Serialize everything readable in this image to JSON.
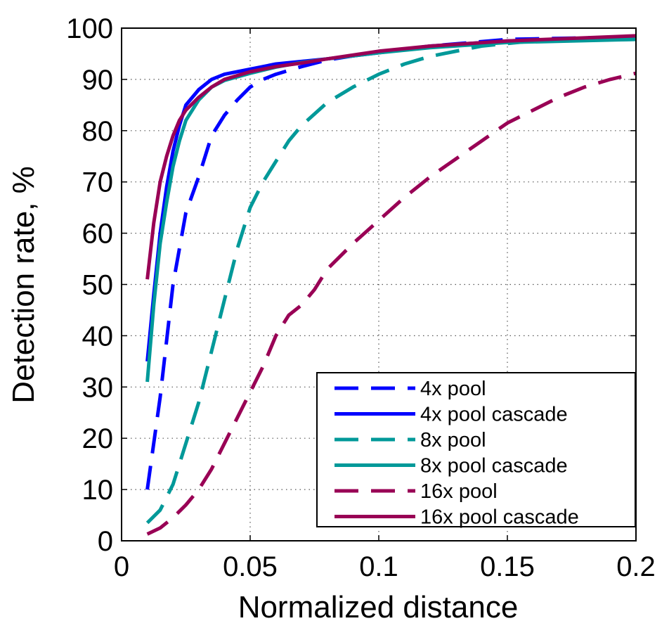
{
  "chart_data": {
    "type": "line",
    "title": "",
    "xlabel": "Normalized distance",
    "ylabel": "Detection rate, %",
    "xlim": [
      0,
      0.2
    ],
    "ylim": [
      0,
      100
    ],
    "xticks": [
      0,
      0.05,
      0.1,
      0.15,
      0.2
    ],
    "xtick_labels": [
      "0",
      "0.05",
      "0.1",
      "0.15",
      "0.2"
    ],
    "yticks": [
      0,
      10,
      20,
      30,
      40,
      50,
      60,
      70,
      80,
      90,
      100
    ],
    "ytick_labels": [
      "0",
      "10",
      "20",
      "30",
      "40",
      "50",
      "60",
      "70",
      "80",
      "90",
      "100"
    ],
    "grid": true,
    "legend_position": "bottom-right",
    "series": [
      {
        "name": "4x pool",
        "color": "#0000ff",
        "style": "dashed",
        "x": [
          0.01,
          0.015,
          0.02,
          0.025,
          0.03,
          0.035,
          0.04,
          0.045,
          0.05,
          0.055,
          0.06,
          0.07,
          0.08,
          0.09,
          0.1,
          0.12,
          0.15,
          0.2
        ],
        "y": [
          10,
          28,
          50,
          64,
          71,
          79,
          83,
          86,
          88.5,
          90,
          91,
          92.5,
          93.8,
          94.6,
          95.3,
          96.5,
          97.8,
          98.3
        ]
      },
      {
        "name": "4x pool cascade",
        "color": "#0000ff",
        "style": "solid",
        "x": [
          0.01,
          0.0125,
          0.015,
          0.0175,
          0.02,
          0.0225,
          0.025,
          0.03,
          0.035,
          0.04,
          0.05,
          0.06,
          0.07,
          0.08,
          0.1,
          0.12,
          0.15,
          0.2
        ],
        "y": [
          35,
          48,
          60,
          69,
          76,
          81,
          85,
          88,
          90,
          91,
          92,
          93,
          93.5,
          94,
          95.2,
          96.5,
          97.5,
          98.2
        ]
      },
      {
        "name": "8x pool",
        "color": "#009999",
        "style": "dashed",
        "x": [
          0.01,
          0.015,
          0.02,
          0.025,
          0.03,
          0.035,
          0.04,
          0.045,
          0.05,
          0.055,
          0.06,
          0.065,
          0.07,
          0.08,
          0.09,
          0.1,
          0.11,
          0.12,
          0.14,
          0.16,
          0.2
        ],
        "y": [
          3.5,
          6,
          11,
          19,
          27,
          37,
          47,
          57,
          65,
          70,
          74,
          78,
          81,
          85.5,
          88.5,
          91,
          93,
          94.5,
          96.5,
          97.5,
          97.8
        ]
      },
      {
        "name": "8x pool cascade",
        "color": "#009999",
        "style": "solid",
        "x": [
          0.01,
          0.0125,
          0.015,
          0.0175,
          0.02,
          0.0225,
          0.025,
          0.03,
          0.035,
          0.04,
          0.05,
          0.06,
          0.07,
          0.08,
          0.1,
          0.12,
          0.15,
          0.2
        ],
        "y": [
          31,
          46,
          58,
          66,
          73,
          78,
          82,
          86,
          88.5,
          89.8,
          91.2,
          92.4,
          93.3,
          94,
          95.2,
          96.2,
          97.2,
          97.8
        ]
      },
      {
        "name": "16x pool",
        "color": "#990055",
        "style": "dashed",
        "x": [
          0.01,
          0.015,
          0.02,
          0.025,
          0.03,
          0.035,
          0.04,
          0.045,
          0.05,
          0.055,
          0.06,
          0.065,
          0.07,
          0.075,
          0.08,
          0.09,
          0.1,
          0.11,
          0.12,
          0.13,
          0.14,
          0.15,
          0.16,
          0.17,
          0.18,
          0.19,
          0.2
        ],
        "y": [
          1.3,
          2.5,
          4.5,
          7,
          10,
          14,
          19,
          24,
          29,
          34,
          40,
          44,
          46,
          49,
          53,
          58,
          62.5,
          67,
          71,
          74.5,
          78,
          81.5,
          84,
          86.5,
          88.5,
          90,
          91.2
        ]
      },
      {
        "name": "16x pool cascade",
        "color": "#990055",
        "style": "solid",
        "x": [
          0.01,
          0.0125,
          0.015,
          0.0175,
          0.02,
          0.0225,
          0.025,
          0.03,
          0.035,
          0.04,
          0.05,
          0.06,
          0.07,
          0.08,
          0.1,
          0.12,
          0.15,
          0.2
        ],
        "y": [
          51,
          62,
          70,
          75,
          79,
          82,
          84,
          86.5,
          88.5,
          90,
          91.5,
          92.5,
          93.2,
          94,
          95.5,
          96.5,
          97.5,
          98.5
        ]
      }
    ]
  }
}
